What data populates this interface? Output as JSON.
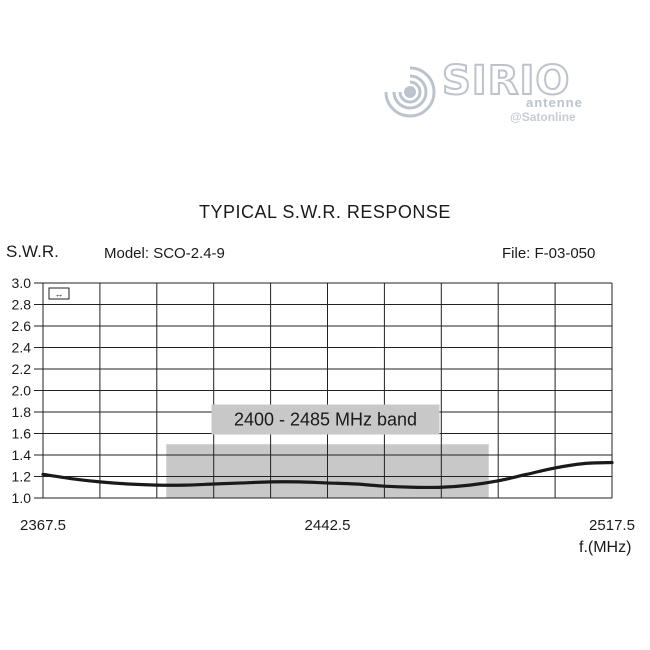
{
  "brand": {
    "name": "SIRIO",
    "sub": "antenne",
    "credit": "@Satonline"
  },
  "header": {
    "title": "TYPICAL S.W.R. RESPONSE",
    "model": "Model:  SCO-2.4-9",
    "file": "File:  F-03-050"
  },
  "chart_data": {
    "type": "line",
    "title": "TYPICAL S.W.R. RESPONSE",
    "ylabel": "S.W.R.",
    "xlabel": "f.(MHz)",
    "xlim": [
      2367.5,
      2517.5
    ],
    "ylim": [
      1.0,
      3.0
    ],
    "x_ticks": [
      "2367.5",
      "2442.5",
      "2517.5"
    ],
    "y_ticks": [
      "1.0",
      "1.2",
      "1.4",
      "1.6",
      "1.8",
      "2.0",
      "2.2",
      "2.4",
      "2.6",
      "2.8",
      "3.0"
    ],
    "grid": true,
    "vertical_divisions": 10,
    "band": {
      "label": "2400 - 2485 MHz band",
      "x_start": 2400,
      "x_end": 2485,
      "y_top": 1.5
    },
    "series": [
      {
        "x": [
          2367.5,
          2375,
          2382.5,
          2390,
          2397.5,
          2405,
          2412.5,
          2420,
          2427.5,
          2435,
          2442.5,
          2450,
          2457.5,
          2465,
          2472.5,
          2480,
          2487.5,
          2495,
          2502.5,
          2510,
          2517.5
        ],
        "values": [
          1.22,
          1.18,
          1.15,
          1.13,
          1.12,
          1.12,
          1.13,
          1.14,
          1.15,
          1.15,
          1.14,
          1.13,
          1.11,
          1.1,
          1.1,
          1.12,
          1.16,
          1.22,
          1.28,
          1.32,
          1.33
        ],
        "color": "#1a1a1a"
      }
    ]
  },
  "colors": {
    "band": "#c8c8c8",
    "grid": "#222222",
    "logo": "#bcc3cc"
  }
}
